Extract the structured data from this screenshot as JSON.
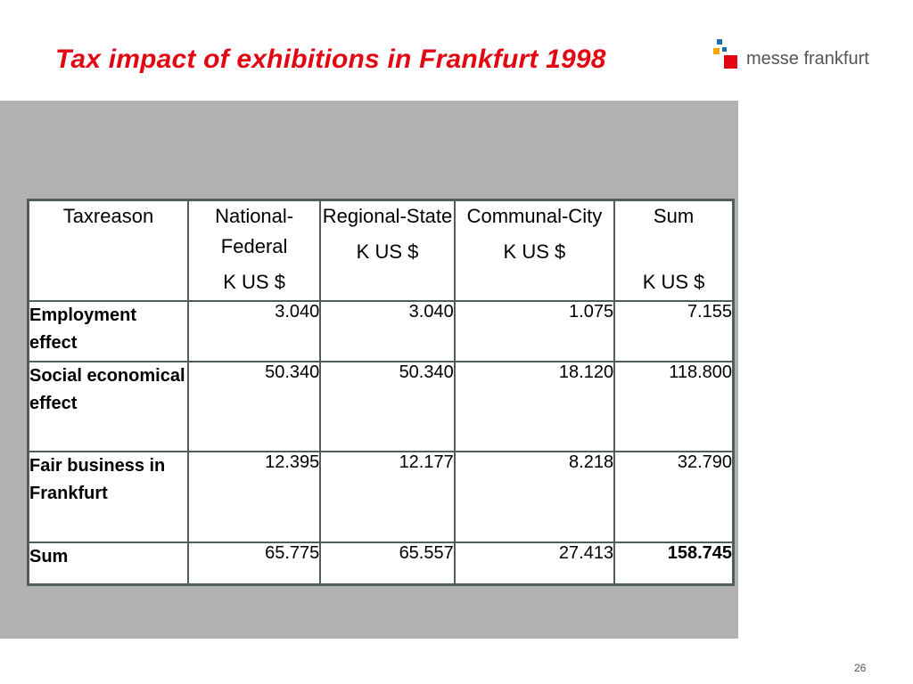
{
  "slide": {
    "title": "Tax impact of exhibitions in Frankfurt 1998",
    "page_number": "26"
  },
  "logo": {
    "text": "messe frankfurt",
    "icon": "messe-frankfurt-logo-mark",
    "colors": [
      "#1f6fb2",
      "#f7a600",
      "#e30613"
    ]
  },
  "table": {
    "headers": [
      {
        "label": "Taxreason",
        "unit": ""
      },
      {
        "label": "National-Federal",
        "unit": "K US $"
      },
      {
        "label": "Regional-State",
        "unit": "K US $"
      },
      {
        "label": "Communal-City",
        "unit": "K US $"
      },
      {
        "label": "Sum",
        "unit": "K US $"
      }
    ],
    "rows": [
      {
        "label": "Employment effect",
        "values": [
          "3.040",
          "3.040",
          "1.075",
          "7.155"
        ]
      },
      {
        "label": "Social economical effect",
        "values": [
          "50.340",
          "50.340",
          "18.120",
          "118.800"
        ]
      },
      {
        "label": "Fair business in Frankfurt",
        "values": [
          "12.395",
          "12.177",
          "8.218",
          "32.790"
        ]
      },
      {
        "label": "Sum",
        "values": [
          "65.775",
          "65.557",
          "27.413",
          "158.745"
        ]
      }
    ]
  },
  "colors": {
    "title": "#e30613",
    "panel": "#b2b2b2",
    "table_border": "#4d5e5d"
  }
}
